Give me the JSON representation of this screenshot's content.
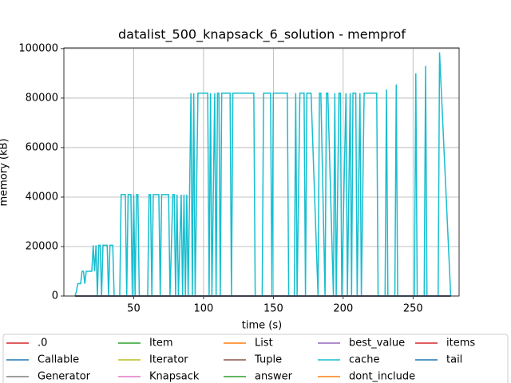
{
  "chart_data": {
    "type": "line",
    "title": "datalist_500_knapsack_6_solution - memprof",
    "xlabel": "time (s)",
    "ylabel": "memory (kB)",
    "xlim": [
      0,
      283
    ],
    "xticks": [
      50,
      100,
      150,
      200,
      250
    ],
    "ylim": [
      0,
      100300
    ],
    "yticks": [
      0,
      20000,
      40000,
      60000,
      80000,
      100000
    ],
    "grid": true,
    "legend": "below",
    "series": [
      {
        "name": ".0",
        "color": "#d62728",
        "x": [
          8,
          277
        ],
        "values": [
          0,
          0
        ]
      },
      {
        "name": "Callable",
        "color": "#1f77b4",
        "x": [
          8,
          277
        ],
        "values": [
          0,
          0
        ]
      },
      {
        "name": "Generator",
        "color": "#7f7f7f",
        "x": [
          8,
          277
        ],
        "values": [
          0,
          0
        ]
      },
      {
        "name": "Item",
        "color": "#2ca02c",
        "x": [
          8,
          277
        ],
        "values": [
          0,
          0
        ]
      },
      {
        "name": "Iterator",
        "color": "#bcbd22",
        "x": [
          8,
          277
        ],
        "values": [
          0,
          0
        ]
      },
      {
        "name": "Knapsack",
        "color": "#e377c2",
        "x": [
          8,
          277
        ],
        "values": [
          0,
          0
        ]
      },
      {
        "name": "List",
        "color": "#ff7f0e",
        "x": [
          8,
          277
        ],
        "values": [
          0,
          0
        ]
      },
      {
        "name": "Tuple",
        "color": "#8c564b",
        "x": [
          8,
          277
        ],
        "values": [
          0,
          0
        ]
      },
      {
        "name": "answer",
        "color": "#2ca02c",
        "x": [
          8,
          277
        ],
        "values": [
          0,
          0
        ]
      },
      {
        "name": "best_value",
        "color": "#9467bd",
        "x": [
          8,
          277
        ],
        "values": [
          0,
          0
        ]
      },
      {
        "name": "cache",
        "color": "#17becf",
        "x": [
          8,
          9,
          10,
          12,
          13,
          14,
          15,
          16,
          20,
          21,
          22,
          23,
          24,
          25,
          26,
          27,
          28,
          31,
          32,
          33,
          35,
          36,
          40,
          41,
          44,
          45,
          46,
          48,
          49,
          50,
          51,
          52,
          53,
          54,
          60,
          61,
          62,
          63,
          64,
          66,
          68,
          69,
          70,
          71,
          75,
          76,
          78,
          79,
          80,
          81,
          82,
          84,
          85,
          86,
          87,
          88,
          89,
          91,
          92,
          93,
          94,
          96,
          103,
          104,
          105,
          106,
          108,
          109,
          110,
          111,
          112,
          113,
          119,
          120,
          121,
          136,
          137,
          142,
          143,
          148,
          149,
          150,
          160,
          161,
          165,
          166,
          167,
          169,
          172,
          173,
          174,
          175,
          177,
          182,
          183,
          184,
          187,
          188,
          189,
          193,
          194,
          195,
          197,
          198,
          199,
          202,
          203,
          205,
          206,
          207,
          209,
          210,
          212,
          213,
          215,
          224,
          225,
          230,
          231,
          232,
          237,
          238,
          239,
          251,
          252,
          253,
          258,
          259,
          260,
          268,
          269,
          277
        ],
        "values": [
          0,
          2000,
          5000,
          5000,
          10000,
          10000,
          5000,
          10000,
          10000,
          20500,
          10000,
          20500,
          0,
          20500,
          20500,
          0,
          20500,
          20500,
          0,
          20500,
          20500,
          0,
          0,
          41000,
          41000,
          0,
          41000,
          41000,
          0,
          41000,
          0,
          41000,
          41000,
          0,
          0,
          41000,
          41000,
          0,
          41000,
          41000,
          41000,
          0,
          41000,
          41000,
          41000,
          0,
          41000,
          41000,
          0,
          41000,
          0,
          41000,
          0,
          41000,
          0,
          41000,
          0,
          82000,
          0,
          82000,
          0,
          82000,
          82000,
          0,
          82000,
          0,
          82000,
          0,
          82000,
          82000,
          0,
          82000,
          82000,
          0,
          82000,
          82000,
          0,
          0,
          82000,
          82000,
          0,
          82000,
          82000,
          0,
          0,
          82000,
          0,
          82000,
          82000,
          0,
          82000,
          82000,
          82000,
          0,
          82000,
          82000,
          0,
          82000,
          82000,
          0,
          82000,
          0,
          82000,
          82000,
          0,
          82000,
          0,
          82000,
          0,
          82000,
          82000,
          0,
          82000,
          0,
          82000,
          82000,
          0,
          0,
          83500,
          0,
          0,
          85500,
          0,
          0,
          90000,
          0,
          0,
          93000,
          0,
          0,
          98500,
          0
        ]
      },
      {
        "name": "dont_include",
        "color": "#ff7f0e",
        "x": [
          8,
          277
        ],
        "values": [
          0,
          0
        ]
      },
      {
        "name": "items",
        "color": "#d62728",
        "x": [
          8,
          277
        ],
        "values": [
          0,
          0
        ]
      },
      {
        "name": "tail",
        "color": "#1f77b4",
        "x": [
          8,
          277
        ],
        "values": [
          0,
          0
        ]
      }
    ]
  }
}
